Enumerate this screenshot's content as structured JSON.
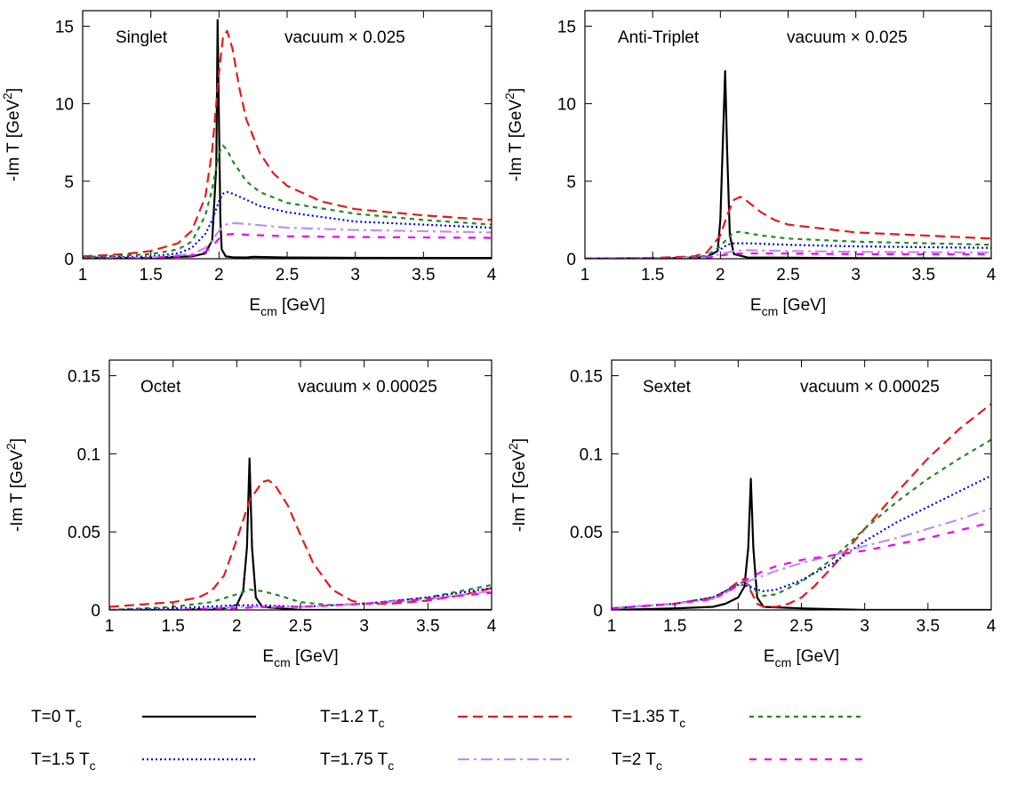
{
  "chart_data": [
    {
      "type": "line",
      "title": "Singlet",
      "annotation": "vacuum × 0.025",
      "xlabel_main": "E",
      "xlabel_sub": "cm",
      "xlabel_unit": " [GeV]",
      "ylabel_main": "-Im T [GeV",
      "ylabel_sup": "2",
      "ylabel_end": "]",
      "xlim": [
        1,
        4
      ],
      "ylim": [
        0,
        16
      ],
      "xticks": [
        1,
        1.5,
        2,
        2.5,
        3,
        3.5,
        4
      ],
      "xtick_labels": [
        "1",
        "1.5",
        "2",
        "2.5",
        "3",
        "3.5",
        "4"
      ],
      "yticks": [
        0,
        5,
        10,
        15
      ],
      "ytick_labels": [
        "0",
        "5",
        "10",
        "15"
      ],
      "series": [
        {
          "key": "T0",
          "x": [
            1,
            1.5,
            1.8,
            1.9,
            1.95,
            1.98,
            1.99,
            2.0,
            2.01,
            2.02,
            2.05,
            2.1,
            2.2,
            2.25,
            2.5,
            3,
            4
          ],
          "y": [
            0.05,
            0.07,
            0.15,
            0.35,
            1.2,
            6.0,
            15.4,
            9.0,
            2.5,
            0.6,
            0.15,
            0.1,
            0.08,
            0.12,
            0.08,
            0.06,
            0.05
          ]
        },
        {
          "key": "T12",
          "x": [
            1,
            1.3,
            1.5,
            1.7,
            1.8,
            1.9,
            1.95,
            2.0,
            2.03,
            2.06,
            2.1,
            2.15,
            2.2,
            2.3,
            2.4,
            2.5,
            2.75,
            3,
            3.5,
            4
          ],
          "y": [
            0.15,
            0.3,
            0.5,
            1.0,
            1.8,
            4.0,
            7.0,
            12.0,
            14.3,
            14.7,
            13.5,
            11.0,
            9.0,
            6.8,
            5.5,
            4.7,
            3.7,
            3.2,
            2.8,
            2.5
          ]
        },
        {
          "key": "T135",
          "x": [
            1,
            1.5,
            1.7,
            1.8,
            1.9,
            1.95,
            2.0,
            2.03,
            2.06,
            2.1,
            2.2,
            2.3,
            2.5,
            3,
            3.5,
            4
          ],
          "y": [
            0.1,
            0.3,
            0.6,
            1.1,
            2.8,
            4.5,
            6.8,
            7.3,
            7.0,
            6.3,
            5.0,
            4.3,
            3.6,
            2.9,
            2.5,
            2.2
          ]
        },
        {
          "key": "T15",
          "x": [
            1,
            1.5,
            1.7,
            1.8,
            1.9,
            1.95,
            2.0,
            2.03,
            2.06,
            2.1,
            2.2,
            2.3,
            2.5,
            3,
            3.5,
            4
          ],
          "y": [
            0.05,
            0.15,
            0.35,
            0.7,
            1.6,
            2.5,
            3.7,
            4.2,
            4.3,
            4.2,
            3.8,
            3.4,
            3.0,
            2.4,
            2.2,
            2.0
          ]
        },
        {
          "key": "T175",
          "x": [
            1,
            1.5,
            1.8,
            1.9,
            1.95,
            2.0,
            2.05,
            2.1,
            2.2,
            2.5,
            3,
            4
          ],
          "y": [
            0.02,
            0.08,
            0.3,
            0.7,
            1.2,
            1.8,
            2.2,
            2.3,
            2.25,
            2.0,
            1.85,
            1.7
          ]
        },
        {
          "key": "T2",
          "x": [
            1,
            1.5,
            1.8,
            1.9,
            1.95,
            2.0,
            2.05,
            2.1,
            2.2,
            2.5,
            3,
            4
          ],
          "y": [
            0.01,
            0.05,
            0.2,
            0.45,
            0.8,
            1.3,
            1.55,
            1.6,
            1.55,
            1.45,
            1.4,
            1.35
          ]
        }
      ]
    },
    {
      "type": "line",
      "title": "Anti-Triplet",
      "annotation": "vacuum × 0.025",
      "xlabel_main": "E",
      "xlabel_sub": "cm",
      "xlabel_unit": " [GeV]",
      "ylabel_main": "-Im T [GeV",
      "ylabel_sup": "2",
      "ylabel_end": "]",
      "xlim": [
        1,
        4
      ],
      "ylim": [
        0,
        16
      ],
      "xticks": [
        1,
        1.5,
        2,
        2.5,
        3,
        3.5,
        4
      ],
      "xtick_labels": [
        "1",
        "1.5",
        "2",
        "2.5",
        "3",
        "3.5",
        "4"
      ],
      "yticks": [
        0,
        5,
        10,
        15
      ],
      "ytick_labels": [
        "0",
        "5",
        "10",
        "15"
      ],
      "series": [
        {
          "key": "T0",
          "x": [
            1,
            1.5,
            1.9,
            1.98,
            2.0,
            2.02,
            2.035,
            2.05,
            2.07,
            2.1,
            2.2,
            3,
            4
          ],
          "y": [
            0.02,
            0.03,
            0.1,
            0.5,
            2.5,
            8.0,
            12.1,
            7.0,
            1.5,
            0.3,
            0.08,
            0.04,
            0.02
          ]
        },
        {
          "key": "T12",
          "x": [
            1,
            1.5,
            1.8,
            1.9,
            2.0,
            2.05,
            2.1,
            2.15,
            2.2,
            2.3,
            2.4,
            2.5,
            3,
            3.5,
            4
          ],
          "y": [
            0.02,
            0.05,
            0.15,
            0.4,
            1.5,
            2.8,
            3.8,
            4.0,
            3.7,
            3.0,
            2.5,
            2.2,
            1.7,
            1.5,
            1.3
          ]
        },
        {
          "key": "T135",
          "x": [
            1,
            1.5,
            1.8,
            1.9,
            2.0,
            2.05,
            2.1,
            2.15,
            2.2,
            2.3,
            2.5,
            3,
            4
          ],
          "y": [
            0.01,
            0.03,
            0.08,
            0.2,
            0.8,
            1.3,
            1.7,
            1.75,
            1.65,
            1.5,
            1.3,
            1.1,
            0.9
          ]
        },
        {
          "key": "T15",
          "x": [
            1,
            1.5,
            1.8,
            1.9,
            2.0,
            2.05,
            2.1,
            2.2,
            2.5,
            3,
            4
          ],
          "y": [
            0.01,
            0.02,
            0.05,
            0.15,
            0.6,
            0.9,
            1.0,
            1.0,
            0.9,
            0.8,
            0.7
          ]
        },
        {
          "key": "T175",
          "x": [
            1,
            1.5,
            1.9,
            2.0,
            2.1,
            2.2,
            2.5,
            3,
            4
          ],
          "y": [
            0.0,
            0.01,
            0.08,
            0.3,
            0.5,
            0.55,
            0.5,
            0.45,
            0.4
          ]
        },
        {
          "key": "T2",
          "x": [
            1,
            1.5,
            1.9,
            2.0,
            2.1,
            2.2,
            2.5,
            3,
            4
          ],
          "y": [
            0.0,
            0.01,
            0.05,
            0.2,
            0.32,
            0.35,
            0.33,
            0.3,
            0.28
          ]
        }
      ]
    },
    {
      "type": "line",
      "title": "Octet",
      "annotation": "vacuum × 0.00025",
      "xlabel_main": "E",
      "xlabel_sub": "cm",
      "xlabel_unit": " [GeV]",
      "ylabel_main": "-Im T [GeV",
      "ylabel_sup": "2",
      "ylabel_end": "]",
      "xlim": [
        1,
        4
      ],
      "ylim": [
        0,
        0.16
      ],
      "xticks": [
        1,
        1.5,
        2,
        2.5,
        3,
        3.5,
        4
      ],
      "xtick_labels": [
        "1",
        "1.5",
        "2",
        "2.5",
        "3",
        "3.5",
        "4"
      ],
      "yticks": [
        0,
        0.05,
        0.1,
        0.15
      ],
      "ytick_labels": [
        "0",
        "0.05",
        "0.1",
        "0.15"
      ],
      "series": [
        {
          "key": "T0",
          "x": [
            1,
            1.5,
            1.9,
            2.0,
            2.05,
            2.08,
            2.1,
            2.12,
            2.15,
            2.2,
            2.5,
            3,
            4
          ],
          "y": [
            0.0,
            0.0,
            0.001,
            0.003,
            0.012,
            0.04,
            0.097,
            0.04,
            0.008,
            0.002,
            0.0,
            0.0,
            0.0
          ]
        },
        {
          "key": "T12",
          "x": [
            1,
            1.5,
            1.7,
            1.8,
            1.9,
            2.0,
            2.1,
            2.2,
            2.25,
            2.3,
            2.4,
            2.5,
            2.6,
            2.75,
            2.9,
            3.0,
            3.2,
            3.5,
            3.8,
            4
          ],
          "y": [
            0.002,
            0.005,
            0.008,
            0.012,
            0.022,
            0.045,
            0.07,
            0.082,
            0.083,
            0.08,
            0.067,
            0.048,
            0.03,
            0.013,
            0.006,
            0.004,
            0.004,
            0.006,
            0.01,
            0.014
          ]
        },
        {
          "key": "T135",
          "x": [
            1,
            1.5,
            1.8,
            2.0,
            2.1,
            2.2,
            2.3,
            2.5,
            2.75,
            3,
            3.5,
            4
          ],
          "y": [
            0.0,
            0.002,
            0.005,
            0.01,
            0.013,
            0.012,
            0.01,
            0.005,
            0.003,
            0.004,
            0.008,
            0.016
          ]
        },
        {
          "key": "T15",
          "x": [
            1,
            1.5,
            2.0,
            2.2,
            2.5,
            3,
            3.5,
            4
          ],
          "y": [
            0.0,
            0.001,
            0.003,
            0.003,
            0.002,
            0.004,
            0.008,
            0.014
          ]
        },
        {
          "key": "T175",
          "x": [
            1,
            1.5,
            2.0,
            2.2,
            2.5,
            3,
            3.5,
            4
          ],
          "y": [
            0.0,
            0.0,
            0.002,
            0.002,
            0.002,
            0.004,
            0.007,
            0.012
          ]
        },
        {
          "key": "T2",
          "x": [
            1,
            1.5,
            2.0,
            2.2,
            2.5,
            3,
            3.5,
            4
          ],
          "y": [
            0.0,
            0.0,
            0.001,
            0.002,
            0.002,
            0.004,
            0.007,
            0.011
          ]
        }
      ]
    },
    {
      "type": "line",
      "title": "Sextet",
      "annotation": "vacuum × 0.00025",
      "xlabel_main": "E",
      "xlabel_sub": "cm",
      "xlabel_unit": " [GeV]",
      "ylabel_main": "-Im T [GeV",
      "ylabel_sup": "2",
      "ylabel_end": "]",
      "xlim": [
        1,
        4
      ],
      "ylim": [
        0,
        0.16
      ],
      "xticks": [
        1,
        1.5,
        2,
        2.5,
        3,
        3.5,
        4
      ],
      "xtick_labels": [
        "1",
        "1.5",
        "2",
        "2.5",
        "3",
        "3.5",
        "4"
      ],
      "yticks": [
        0,
        0.05,
        0.1,
        0.15
      ],
      "ytick_labels": [
        "0",
        "0.05",
        "0.1",
        "0.15"
      ],
      "series": [
        {
          "key": "T0",
          "x": [
            1,
            1.5,
            1.8,
            1.9,
            2.0,
            2.05,
            2.08,
            2.1,
            2.12,
            2.15,
            2.2,
            2.5,
            3,
            4
          ],
          "y": [
            0.0,
            0.001,
            0.002,
            0.004,
            0.008,
            0.015,
            0.04,
            0.084,
            0.04,
            0.008,
            0.002,
            0.001,
            0.0,
            0.0
          ]
        },
        {
          "key": "T12",
          "x": [
            1,
            1.5,
            1.8,
            1.9,
            2.0,
            2.05,
            2.1,
            2.15,
            2.2,
            2.3,
            2.4,
            2.5,
            2.6,
            2.75,
            3,
            3.25,
            3.5,
            3.75,
            4
          ],
          "y": [
            0.001,
            0.004,
            0.008,
            0.012,
            0.018,
            0.02,
            0.012,
            0.004,
            0.002,
            0.002,
            0.004,
            0.008,
            0.015,
            0.028,
            0.052,
            0.075,
            0.097,
            0.116,
            0.132
          ]
        },
        {
          "key": "T135",
          "x": [
            1,
            1.5,
            1.8,
            1.9,
            2.0,
            2.05,
            2.1,
            2.15,
            2.2,
            2.3,
            2.5,
            2.75,
            3,
            3.25,
            3.5,
            3.75,
            4
          ],
          "y": [
            0.001,
            0.004,
            0.008,
            0.012,
            0.017,
            0.018,
            0.015,
            0.011,
            0.009,
            0.01,
            0.018,
            0.033,
            0.052,
            0.069,
            0.084,
            0.097,
            0.109
          ]
        },
        {
          "key": "T15",
          "x": [
            1,
            1.5,
            1.8,
            1.9,
            2.0,
            2.05,
            2.1,
            2.2,
            2.3,
            2.5,
            2.75,
            3,
            3.25,
            3.5,
            3.75,
            4
          ],
          "y": [
            0.001,
            0.004,
            0.008,
            0.012,
            0.016,
            0.016,
            0.014,
            0.012,
            0.013,
            0.019,
            0.03,
            0.044,
            0.056,
            0.066,
            0.076,
            0.086
          ]
        },
        {
          "key": "T175",
          "x": [
            1,
            1.5,
            1.8,
            1.9,
            2.0,
            2.1,
            2.2,
            2.3,
            2.5,
            2.75,
            3,
            3.25,
            3.5,
            3.75,
            4
          ],
          "y": [
            0.001,
            0.004,
            0.007,
            0.011,
            0.015,
            0.019,
            0.022,
            0.025,
            0.03,
            0.035,
            0.041,
            0.046,
            0.052,
            0.058,
            0.065
          ]
        },
        {
          "key": "T2",
          "x": [
            1,
            1.5,
            1.8,
            1.9,
            2.0,
            2.1,
            2.2,
            2.3,
            2.5,
            2.75,
            3,
            3.25,
            3.5,
            3.75,
            4
          ],
          "y": [
            0.001,
            0.004,
            0.007,
            0.011,
            0.016,
            0.021,
            0.025,
            0.028,
            0.032,
            0.035,
            0.038,
            0.042,
            0.046,
            0.051,
            0.056
          ]
        }
      ]
    }
  ],
  "legend": [
    {
      "key": "T0",
      "label": "T=0 T",
      "sub": "c",
      "color": "#000000",
      "dash": ""
    },
    {
      "key": "T12",
      "label": "T=1.2 T",
      "sub": "c",
      "color": "#e41a1c",
      "dash": "11,6"
    },
    {
      "key": "T135",
      "label": "T=1.35 T",
      "sub": "c",
      "color": "#1f8a1f",
      "dash": "5,5"
    },
    {
      "key": "T15",
      "label": "T=1.5 T",
      "sub": "c",
      "color": "#0000ee",
      "dash": "2,3"
    },
    {
      "key": "T175",
      "label": "T=1.75 T",
      "sub": "c",
      "color": "#bf8ff0",
      "dash": "13,5,3,5"
    },
    {
      "key": "T2",
      "label": "T=2 T",
      "sub": "c",
      "color": "#ee00ee",
      "dash": "8,9"
    }
  ]
}
